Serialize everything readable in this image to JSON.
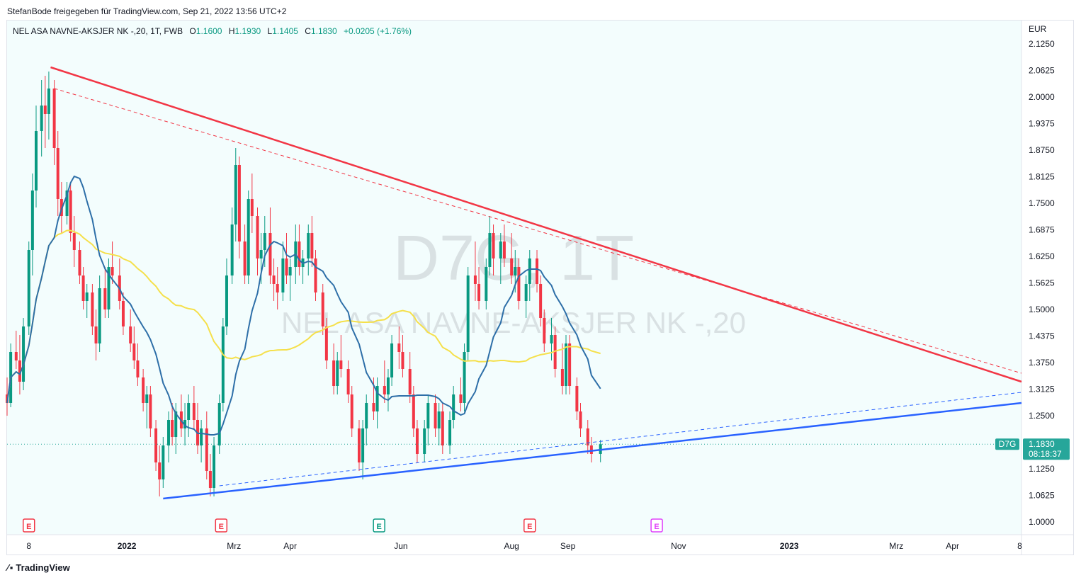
{
  "header": {
    "publish_line": "StefanBode freigegeben für TradingView.com, Sep 21, 2022 13:56 UTC+2"
  },
  "legend": {
    "symbol": "NEL ASA NAVNE-AKSJER NK -,20, 1T, FWB",
    "open_label": "O",
    "open": "1.1600",
    "high_label": "H",
    "high": "1.1930",
    "low_label": "L",
    "low": "1.1405",
    "close_label": "C",
    "close": "1.1830",
    "change": "+0.0205 (+1.76%)"
  },
  "watermark": {
    "ticker": "D7G, 1T",
    "name": "NEL ASA NAVNE-AKSJER NK -,20"
  },
  "price_scale": {
    "currency": "EUR",
    "ticks": [
      "2.1250",
      "2.0625",
      "2.0000",
      "1.9375",
      "1.8750",
      "1.8125",
      "1.7500",
      "1.6875",
      "1.6250",
      "1.5625",
      "1.5000",
      "1.4375",
      "1.3750",
      "1.3125",
      "1.2500",
      "1.1250",
      "1.0625",
      "1.0000"
    ],
    "last_label": "D7G",
    "last_price": "1.1830",
    "countdown": "08:18:37"
  },
  "time_scale": {
    "labels": [
      "8",
      "2022",
      "Mrz",
      "Apr",
      "Jun",
      "Aug",
      "Sep",
      "Nov",
      "2023",
      "Mrz",
      "Apr",
      "8"
    ]
  },
  "events": [
    {
      "letter": "E",
      "color": "#f23645"
    },
    {
      "letter": "E",
      "color": "#f23645"
    },
    {
      "letter": "E",
      "color": "#089981"
    },
    {
      "letter": "E",
      "color": "#f23645"
    },
    {
      "letter": "E",
      "color": "#e040fb"
    }
  ],
  "colors": {
    "up": "#089981",
    "down": "#f23645",
    "ma_short": "#2e6fa8",
    "ma_long": "#f5e04b",
    "resistance": "#f23645",
    "support": "#2962ff",
    "last_price": "#26a69a"
  },
  "footer": {
    "brand": "TradingView"
  },
  "chart_data": {
    "type": "candlestick",
    "title": "NEL ASA NAVNE-AKSJER NK -,20, 1T, FWB",
    "ylabel": "EUR",
    "ylim": [
      0.97,
      2.18
    ],
    "x_range": [
      "2021-10-27",
      "2023-05-09"
    ],
    "ohlc": [
      [
        "2021-10-27",
        1.3,
        1.34,
        1.25,
        1.28
      ],
      [
        "2021-10-29",
        1.28,
        1.42,
        1.27,
        1.4
      ],
      [
        "2021-11-01",
        1.4,
        1.45,
        1.36,
        1.38
      ],
      [
        "2021-11-03",
        1.38,
        1.44,
        1.3,
        1.33
      ],
      [
        "2021-11-05",
        1.33,
        1.48,
        1.31,
        1.46
      ],
      [
        "2021-11-08",
        1.46,
        1.66,
        1.44,
        1.64
      ],
      [
        "2021-11-10",
        1.64,
        1.82,
        1.58,
        1.78
      ],
      [
        "2021-11-12",
        1.78,
        1.98,
        1.74,
        1.92
      ],
      [
        "2021-11-15",
        1.92,
        2.04,
        1.86,
        1.98
      ],
      [
        "2021-11-17",
        1.98,
        2.05,
        1.88,
        1.96
      ],
      [
        "2021-11-19",
        1.96,
        2.06,
        1.9,
        2.02
      ],
      [
        "2021-11-22",
        2.02,
        2.04,
        1.84,
        1.88
      ],
      [
        "2021-11-24",
        1.88,
        1.92,
        1.72,
        1.76
      ],
      [
        "2021-11-26",
        1.76,
        1.8,
        1.68,
        1.72
      ],
      [
        "2021-11-29",
        1.72,
        1.8,
        1.7,
        1.78
      ],
      [
        "2021-12-01",
        1.78,
        1.8,
        1.66,
        1.68
      ],
      [
        "2021-12-03",
        1.68,
        1.72,
        1.6,
        1.64
      ],
      [
        "2021-12-06",
        1.64,
        1.66,
        1.56,
        1.58
      ],
      [
        "2021-12-08",
        1.58,
        1.6,
        1.5,
        1.52
      ],
      [
        "2021-12-10",
        1.52,
        1.56,
        1.48,
        1.54
      ],
      [
        "2021-12-13",
        1.54,
        1.56,
        1.44,
        1.46
      ],
      [
        "2021-12-15",
        1.46,
        1.5,
        1.38,
        1.42
      ],
      [
        "2021-12-17",
        1.42,
        1.58,
        1.4,
        1.55
      ],
      [
        "2021-12-20",
        1.55,
        1.6,
        1.48,
        1.5
      ],
      [
        "2021-12-22",
        1.5,
        1.62,
        1.48,
        1.6
      ],
      [
        "2021-12-24",
        1.6,
        1.66,
        1.56,
        1.58
      ],
      [
        "2021-12-28",
        1.58,
        1.62,
        1.5,
        1.52
      ],
      [
        "2021-12-30",
        1.52,
        1.54,
        1.44,
        1.46
      ],
      [
        "2022-01-03",
        1.46,
        1.5,
        1.4,
        1.42
      ],
      [
        "2022-01-05",
        1.42,
        1.46,
        1.36,
        1.38
      ],
      [
        "2022-01-07",
        1.38,
        1.42,
        1.32,
        1.34
      ],
      [
        "2022-01-10",
        1.34,
        1.36,
        1.26,
        1.28
      ],
      [
        "2022-01-12",
        1.28,
        1.32,
        1.22,
        1.3
      ],
      [
        "2022-01-14",
        1.3,
        1.32,
        1.2,
        1.22
      ],
      [
        "2022-01-17",
        1.22,
        1.24,
        1.12,
        1.14
      ],
      [
        "2022-01-19",
        1.14,
        1.18,
        1.06,
        1.1
      ],
      [
        "2022-01-21",
        1.1,
        1.2,
        1.08,
        1.18
      ],
      [
        "2022-01-24",
        1.18,
        1.26,
        1.14,
        1.24
      ],
      [
        "2022-01-26",
        1.24,
        1.28,
        1.18,
        1.2
      ],
      [
        "2022-01-28",
        1.2,
        1.28,
        1.16,
        1.26
      ],
      [
        "2022-01-31",
        1.26,
        1.3,
        1.2,
        1.22
      ],
      [
        "2022-02-02",
        1.22,
        1.28,
        1.18,
        1.24
      ],
      [
        "2022-02-04",
        1.24,
        1.3,
        1.2,
        1.28
      ],
      [
        "2022-02-07",
        1.28,
        1.32,
        1.22,
        1.24
      ],
      [
        "2022-02-09",
        1.24,
        1.28,
        1.16,
        1.18
      ],
      [
        "2022-02-11",
        1.18,
        1.24,
        1.14,
        1.22
      ],
      [
        "2022-02-14",
        1.22,
        1.26,
        1.1,
        1.12
      ],
      [
        "2022-02-16",
        1.12,
        1.16,
        1.06,
        1.08
      ],
      [
        "2022-02-18",
        1.08,
        1.2,
        1.06,
        1.18
      ],
      [
        "2022-02-21",
        1.18,
        1.3,
        1.16,
        1.28
      ],
      [
        "2022-02-23",
        1.28,
        1.48,
        1.26,
        1.46
      ],
      [
        "2022-02-25",
        1.46,
        1.62,
        1.44,
        1.58
      ],
      [
        "2022-02-28",
        1.58,
        1.74,
        1.56,
        1.7
      ],
      [
        "2022-03-02",
        1.7,
        1.88,
        1.66,
        1.84
      ],
      [
        "2022-03-04",
        1.84,
        1.86,
        1.62,
        1.66
      ],
      [
        "2022-03-07",
        1.66,
        1.7,
        1.56,
        1.58
      ],
      [
        "2022-03-09",
        1.58,
        1.78,
        1.56,
        1.76
      ],
      [
        "2022-03-11",
        1.76,
        1.82,
        1.68,
        1.72
      ],
      [
        "2022-03-14",
        1.72,
        1.74,
        1.58,
        1.62
      ],
      [
        "2022-03-16",
        1.62,
        1.68,
        1.56,
        1.64
      ],
      [
        "2022-03-18",
        1.64,
        1.72,
        1.6,
        1.68
      ],
      [
        "2022-03-21",
        1.68,
        1.74,
        1.56,
        1.58
      ],
      [
        "2022-03-23",
        1.58,
        1.62,
        1.52,
        1.56
      ],
      [
        "2022-03-25",
        1.56,
        1.6,
        1.5,
        1.54
      ],
      [
        "2022-03-28",
        1.54,
        1.66,
        1.52,
        1.62
      ],
      [
        "2022-03-30",
        1.62,
        1.68,
        1.56,
        1.58
      ],
      [
        "2022-04-01",
        1.58,
        1.62,
        1.52,
        1.6
      ],
      [
        "2022-04-04",
        1.6,
        1.7,
        1.56,
        1.66
      ],
      [
        "2022-04-06",
        1.66,
        1.7,
        1.58,
        1.6
      ],
      [
        "2022-04-08",
        1.6,
        1.64,
        1.56,
        1.62
      ],
      [
        "2022-04-11",
        1.62,
        1.7,
        1.58,
        1.68
      ],
      [
        "2022-04-13",
        1.68,
        1.72,
        1.6,
        1.62
      ],
      [
        "2022-04-15",
        1.62,
        1.64,
        1.52,
        1.54
      ],
      [
        "2022-04-19",
        1.54,
        1.56,
        1.44,
        1.46
      ],
      [
        "2022-04-21",
        1.46,
        1.48,
        1.36,
        1.38
      ],
      [
        "2022-04-25",
        1.38,
        1.42,
        1.3,
        1.32
      ],
      [
        "2022-04-27",
        1.32,
        1.4,
        1.3,
        1.38
      ],
      [
        "2022-04-29",
        1.38,
        1.44,
        1.34,
        1.36
      ],
      [
        "2022-05-03",
        1.36,
        1.38,
        1.28,
        1.3
      ],
      [
        "2022-05-05",
        1.3,
        1.32,
        1.2,
        1.22
      ],
      [
        "2022-05-09",
        1.22,
        1.24,
        1.12,
        1.14
      ],
      [
        "2022-05-11",
        1.14,
        1.24,
        1.1,
        1.22
      ],
      [
        "2022-05-13",
        1.22,
        1.3,
        1.18,
        1.28
      ],
      [
        "2022-05-17",
        1.28,
        1.34,
        1.24,
        1.26
      ],
      [
        "2022-05-19",
        1.26,
        1.34,
        1.22,
        1.32
      ],
      [
        "2022-05-23",
        1.32,
        1.38,
        1.28,
        1.3
      ],
      [
        "2022-05-25",
        1.3,
        1.36,
        1.26,
        1.34
      ],
      [
        "2022-05-27",
        1.34,
        1.44,
        1.32,
        1.42
      ],
      [
        "2022-05-31",
        1.42,
        1.46,
        1.36,
        1.4
      ],
      [
        "2022-06-02",
        1.4,
        1.44,
        1.34,
        1.36
      ],
      [
        "2022-06-06",
        1.36,
        1.4,
        1.28,
        1.3
      ],
      [
        "2022-06-08",
        1.3,
        1.32,
        1.2,
        1.22
      ],
      [
        "2022-06-10",
        1.22,
        1.24,
        1.14,
        1.16
      ],
      [
        "2022-06-14",
        1.16,
        1.24,
        1.14,
        1.22
      ],
      [
        "2022-06-16",
        1.22,
        1.3,
        1.18,
        1.28
      ],
      [
        "2022-06-20",
        1.28,
        1.3,
        1.2,
        1.22
      ],
      [
        "2022-06-22",
        1.22,
        1.28,
        1.18,
        1.26
      ],
      [
        "2022-06-24",
        1.26,
        1.28,
        1.16,
        1.18
      ],
      [
        "2022-06-28",
        1.18,
        1.26,
        1.16,
        1.24
      ],
      [
        "2022-06-30",
        1.24,
        1.32,
        1.22,
        1.3
      ],
      [
        "2022-07-04",
        1.3,
        1.34,
        1.26,
        1.28
      ],
      [
        "2022-07-06",
        1.28,
        1.42,
        1.26,
        1.4
      ],
      [
        "2022-07-08",
        1.4,
        1.6,
        1.38,
        1.58
      ],
      [
        "2022-07-12",
        1.58,
        1.66,
        1.52,
        1.56
      ],
      [
        "2022-07-14",
        1.56,
        1.6,
        1.5,
        1.52
      ],
      [
        "2022-07-18",
        1.52,
        1.62,
        1.5,
        1.6
      ],
      [
        "2022-07-20",
        1.6,
        1.72,
        1.58,
        1.68
      ],
      [
        "2022-07-22",
        1.68,
        1.7,
        1.58,
        1.62
      ],
      [
        "2022-07-26",
        1.62,
        1.68,
        1.56,
        1.66
      ],
      [
        "2022-07-28",
        1.66,
        1.7,
        1.6,
        1.62
      ],
      [
        "2022-08-01",
        1.62,
        1.68,
        1.56,
        1.58
      ],
      [
        "2022-08-03",
        1.58,
        1.64,
        1.54,
        1.6
      ],
      [
        "2022-08-05",
        1.6,
        1.62,
        1.5,
        1.52
      ],
      [
        "2022-08-09",
        1.52,
        1.58,
        1.48,
        1.56
      ],
      [
        "2022-08-11",
        1.56,
        1.64,
        1.52,
        1.62
      ],
      [
        "2022-08-15",
        1.62,
        1.64,
        1.54,
        1.56
      ],
      [
        "2022-08-17",
        1.56,
        1.58,
        1.46,
        1.48
      ],
      [
        "2022-08-19",
        1.48,
        1.5,
        1.4,
        1.42
      ],
      [
        "2022-08-23",
        1.42,
        1.48,
        1.38,
        1.44
      ],
      [
        "2022-08-25",
        1.44,
        1.46,
        1.34,
        1.36
      ],
      [
        "2022-08-29",
        1.36,
        1.42,
        1.3,
        1.32
      ],
      [
        "2022-08-31",
        1.32,
        1.44,
        1.3,
        1.42
      ],
      [
        "2022-09-02",
        1.42,
        1.44,
        1.3,
        1.32
      ],
      [
        "2022-09-06",
        1.32,
        1.34,
        1.24,
        1.26
      ],
      [
        "2022-09-08",
        1.26,
        1.28,
        1.2,
        1.22
      ],
      [
        "2022-09-12",
        1.22,
        1.24,
        1.16,
        1.18
      ],
      [
        "2022-09-14",
        1.18,
        1.2,
        1.14,
        1.16
      ],
      [
        "2022-09-19",
        1.16,
        1.193,
        1.1405,
        1.183
      ]
    ],
    "last_price": 1.183,
    "lines": [
      {
        "name": "resistance",
        "style": "solid",
        "x": [
          "2021-11-20",
          "2023-05-09"
        ],
        "y": [
          2.07,
          1.33
        ]
      },
      {
        "name": "resistance-alt",
        "style": "dashed",
        "x": [
          "2021-11-22",
          "2023-05-09"
        ],
        "y": [
          2.02,
          1.35
        ]
      },
      {
        "name": "support",
        "style": "solid",
        "x": [
          "2022-01-21",
          "2023-05-09"
        ],
        "y": [
          1.055,
          1.28
        ]
      },
      {
        "name": "support-alt",
        "style": "dashed",
        "x": [
          "2022-02-21",
          "2023-05-09"
        ],
        "y": [
          1.085,
          1.305
        ]
      }
    ]
  }
}
